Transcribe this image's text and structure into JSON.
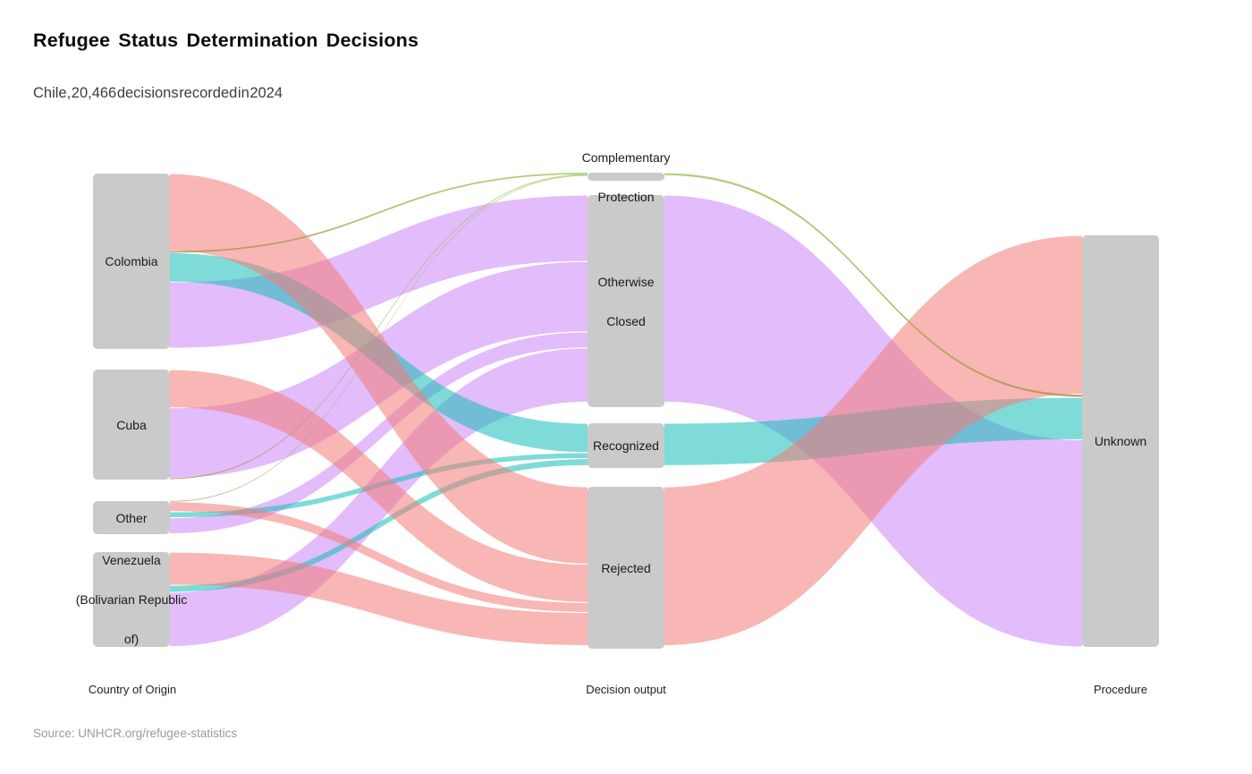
{
  "title": "Refugee Status Determination Decisions",
  "subtitle": "Chile, 20,466 decisions recorded in 2024",
  "source_note": "Source: UNHCR.org/refugee-statistics",
  "country": "Chile",
  "year": "2024",
  "total_decisions": "20,466",
  "column_labels": [
    "Country of Origin",
    "Decision output",
    "Procedure"
  ],
  "colors": {
    "background": "#ffffff",
    "node_fill": "#cacaca",
    "label_color": "#1a1a1a",
    "title_color": "#0b0b0b",
    "subtitle_color": "#3d3d3d",
    "source_color": "#9b9b9b",
    "flow_pink": "#f27c77",
    "flow_teal": "#14beb8",
    "flow_purple": "#ca85f8",
    "flow_olive_tan": "#b28e4d",
    "flow_olive_green": "#a3cc68",
    "flow_opacity": 0.55,
    "line_opacity": 0.85
  },
  "chart_data": {
    "type": "sankey",
    "title": "Refugee Status Determination Decisions",
    "subtitle": "Chile, 20,466 decisions recorded in 2024",
    "unit_total": 20466,
    "columns": [
      {
        "index": 0,
        "label": "Country of Origin"
      },
      {
        "index": 1,
        "label": "Decision output"
      },
      {
        "index": 2,
        "label": "Procedure"
      }
    ],
    "nodes": [
      {
        "id": "colombia",
        "label": "Colombia",
        "label_lines": [
          "Colombia"
        ],
        "column": 0,
        "value": 8691
      },
      {
        "id": "cuba",
        "label": "Cuba",
        "label_lines": [
          "Cuba"
        ],
        "column": 0,
        "value": 5445
      },
      {
        "id": "other",
        "label": "Other",
        "label_lines": [
          "Other"
        ],
        "column": 0,
        "value": 1630
      },
      {
        "id": "venezuela",
        "label": "Venezuela (Bolivarian Republic of)",
        "label_lines": [
          "Venezuela",
          "(Bolivarian Republic",
          "of)"
        ],
        "column": 0,
        "value": 4700
      },
      {
        "id": "cp",
        "label": "Complementary Protection",
        "label_lines": [
          "Complementary",
          "Protection"
        ],
        "column": 1,
        "value": 155
      },
      {
        "id": "oc",
        "label": "Otherwise Closed",
        "label_lines": [
          "Otherwise",
          "Closed"
        ],
        "column": 1,
        "value": 10300
      },
      {
        "id": "recognized",
        "label": "Recognized",
        "label_lines": [
          "Recognized"
        ],
        "column": 1,
        "value": 2111
      },
      {
        "id": "rejected",
        "label": "Rejected",
        "label_lines": [
          "Rejected"
        ],
        "column": 1,
        "value": 7900
      },
      {
        "id": "unknown",
        "label": "Unknown",
        "label_lines": [
          "Unknown"
        ],
        "column": 2,
        "value": 20466
      }
    ],
    "links": [
      {
        "source": "colombia",
        "target": "rejected",
        "value": 3850,
        "color": "pink",
        "s_slot": 0,
        "t_slot": 0
      },
      {
        "source": "colombia",
        "target": "cp",
        "value": 80,
        "color": "olive",
        "s_slot": 1,
        "t_slot": 0,
        "grad": [
          "#b28e4d",
          "#a3cc68"
        ]
      },
      {
        "source": "colombia",
        "target": "recognized",
        "value": 1461,
        "color": "teal",
        "s_slot": 2,
        "t_slot": 0
      },
      {
        "source": "colombia",
        "target": "oc",
        "value": 3300,
        "color": "purple",
        "s_slot": 3,
        "t_slot": 0
      },
      {
        "source": "cuba",
        "target": "rejected",
        "value": 1900,
        "color": "pink",
        "s_slot": 0,
        "t_slot": 1
      },
      {
        "source": "cuba",
        "target": "oc",
        "value": 3500,
        "color": "purple",
        "s_slot": 1,
        "t_slot": 1
      },
      {
        "source": "cuba",
        "target": "cp",
        "value": 45,
        "color": "olive",
        "s_slot": 2,
        "t_slot": 1,
        "grad": [
          "#b28e4d",
          "#a3cc68"
        ]
      },
      {
        "source": "other",
        "target": "cp",
        "value": 30,
        "color": "olive",
        "s_slot": 0,
        "t_slot": 2,
        "grad": [
          "#b28e4d",
          "#a3cc68"
        ]
      },
      {
        "source": "other",
        "target": "rejected",
        "value": 500,
        "color": "pink",
        "s_slot": 1,
        "t_slot": 2
      },
      {
        "source": "other",
        "target": "recognized",
        "value": 300,
        "color": "teal",
        "s_slot": 2,
        "t_slot": 1
      },
      {
        "source": "other",
        "target": "oc",
        "value": 800,
        "color": "purple",
        "s_slot": 3,
        "t_slot": 2
      },
      {
        "source": "venezuela",
        "target": "rejected",
        "value": 1650,
        "color": "pink",
        "s_slot": 0,
        "t_slot": 3
      },
      {
        "source": "venezuela",
        "target": "recognized",
        "value": 350,
        "color": "teal",
        "s_slot": 1,
        "t_slot": 2
      },
      {
        "source": "venezuela",
        "target": "oc",
        "value": 2700,
        "color": "purple",
        "s_slot": 2,
        "t_slot": 3
      },
      {
        "source": "rejected",
        "target": "unknown",
        "value": 7900,
        "color": "pink",
        "s_slot": 0,
        "t_slot": 0
      },
      {
        "source": "cp",
        "target": "unknown",
        "value": 155,
        "color": "olive",
        "s_slot": 0,
        "t_slot": 1,
        "grad": [
          "#a3cc68",
          "#b28e4d"
        ]
      },
      {
        "source": "recognized",
        "target": "unknown",
        "value": 2111,
        "color": "teal",
        "s_slot": 0,
        "t_slot": 2
      },
      {
        "source": "oc",
        "target": "unknown",
        "value": 10300,
        "color": "purple",
        "s_slot": 0,
        "t_slot": 3
      }
    ]
  }
}
